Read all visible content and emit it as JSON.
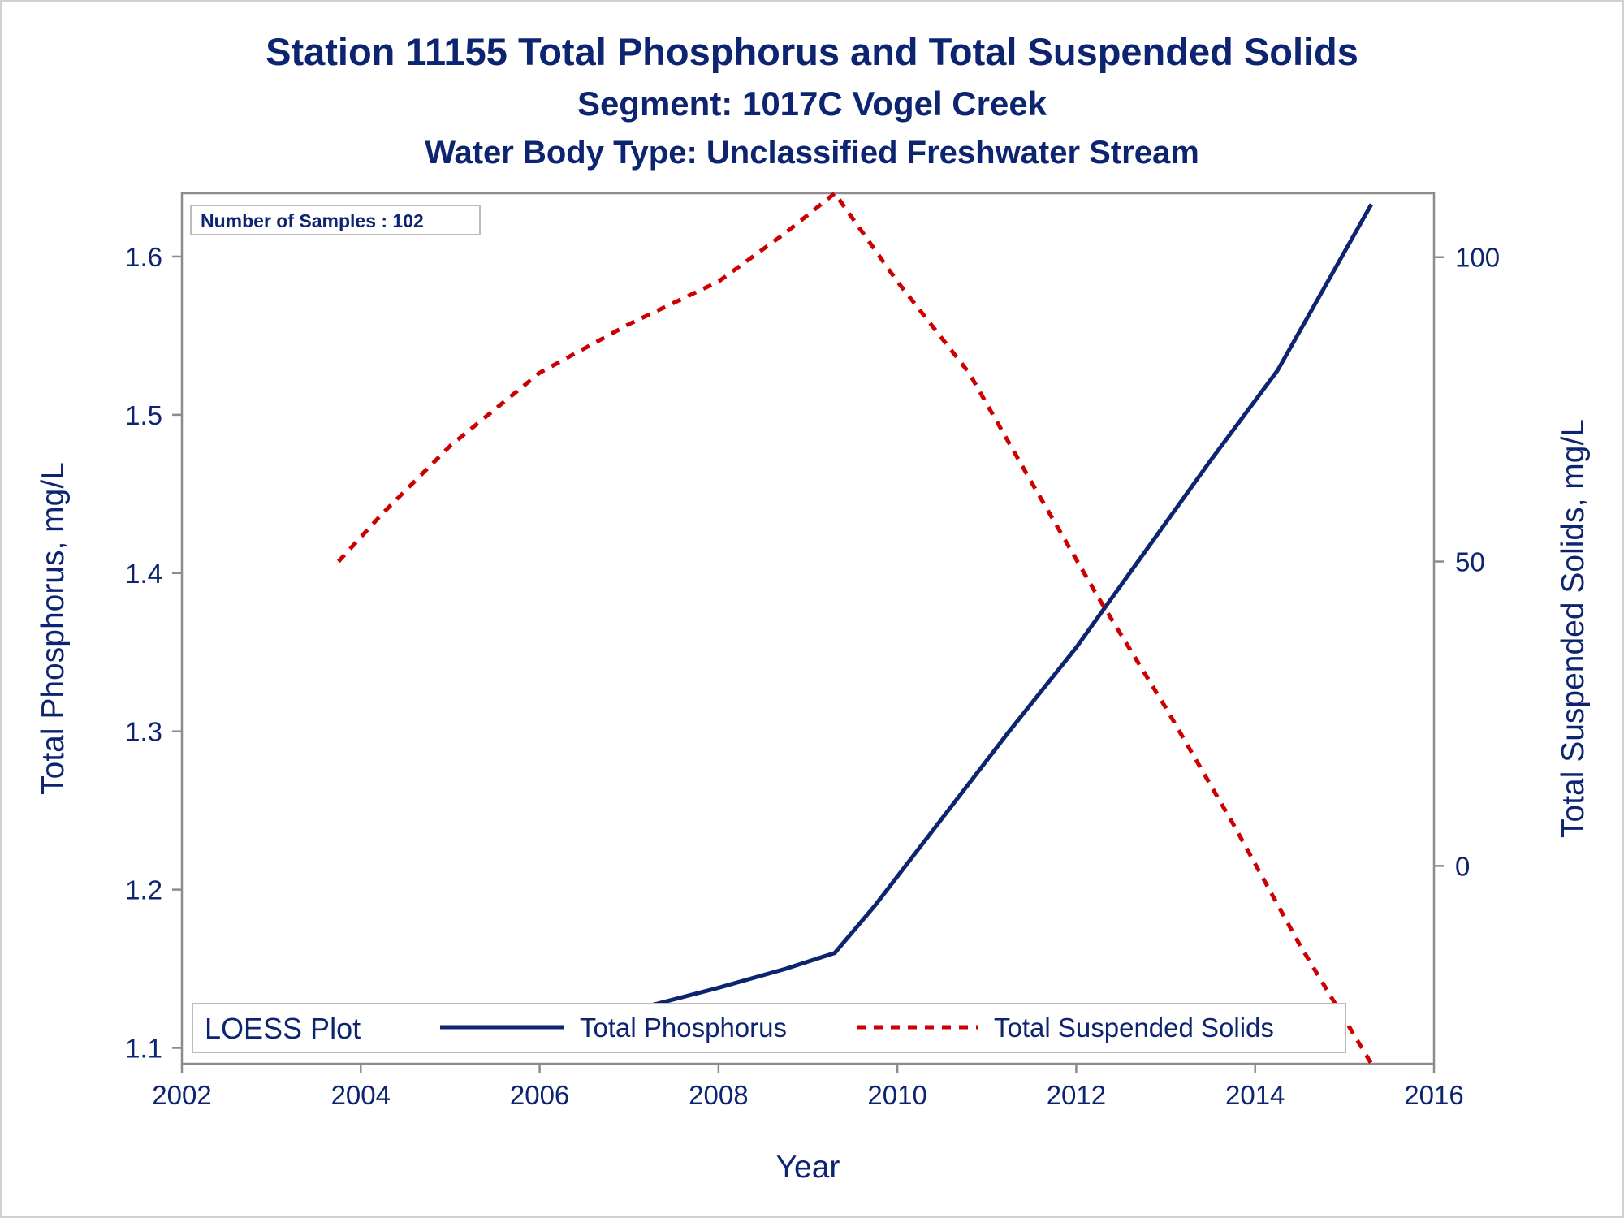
{
  "chart_data": {
    "type": "line",
    "title": "Station 11155  Total Phosphorus and Total Suspended Solids",
    "subtitle1": "Segment: 1017C  Vogel Creek",
    "subtitle2": "Water Body Type: Unclassified Freshwater Stream",
    "xlabel": "Year",
    "ylabel_left": "Total Phosphorus, mg/L",
    "ylabel_right": "Total Suspended Solids, mg/L",
    "xlim": [
      2002,
      2016
    ],
    "ylim_left": [
      1.09,
      1.64
    ],
    "ylim_right": [
      -32.5,
      110.5
    ],
    "x_ticks": [
      "2002",
      "2004",
      "2006",
      "2008",
      "2010",
      "2012",
      "2014",
      "2016"
    ],
    "y_left_ticks": [
      "1.1",
      "1.2",
      "1.3",
      "1.4",
      "1.5",
      "1.6"
    ],
    "y_right_ticks": [
      "0",
      "50",
      "100"
    ],
    "inset_label": "Number of Samples : 102",
    "legend_title": "LOESS Plot",
    "legend_position": "bottom-inside",
    "grid": false,
    "series": [
      {
        "name": "Total Phosphorus",
        "axis": "left",
        "style": "solid",
        "color": "#0d2570",
        "x": [
          2003.75,
          2004.5,
          2005.25,
          2006.0,
          2006.5,
          2007.25,
          2008.0,
          2008.75,
          2009.3,
          2009.75,
          2010.5,
          2011.25,
          2012.0,
          2012.75,
          2013.5,
          2014.25,
          2015.3
        ],
        "y": [
          1.1,
          1.102,
          1.105,
          1.11,
          1.115,
          1.127,
          1.138,
          1.15,
          1.16,
          1.19,
          1.245,
          1.3,
          1.353,
          1.412,
          1.471,
          1.528,
          1.633
        ]
      },
      {
        "name": "Total Suspended Solids",
        "axis": "right",
        "style": "dashed",
        "color": "#cc0000",
        "x": [
          2003.75,
          2004.25,
          2005.0,
          2006.0,
          2007.0,
          2008.0,
          2008.75,
          2009.3,
          2010.0,
          2010.8,
          2011.5,
          2012.25,
          2013.0,
          2013.75,
          2014.5,
          2015.3
        ],
        "y": [
          50,
          58,
          69,
          81,
          89,
          96,
          104,
          110.5,
          96,
          81,
          63,
          44,
          26,
          7,
          -13,
          -32.5
        ]
      }
    ]
  }
}
